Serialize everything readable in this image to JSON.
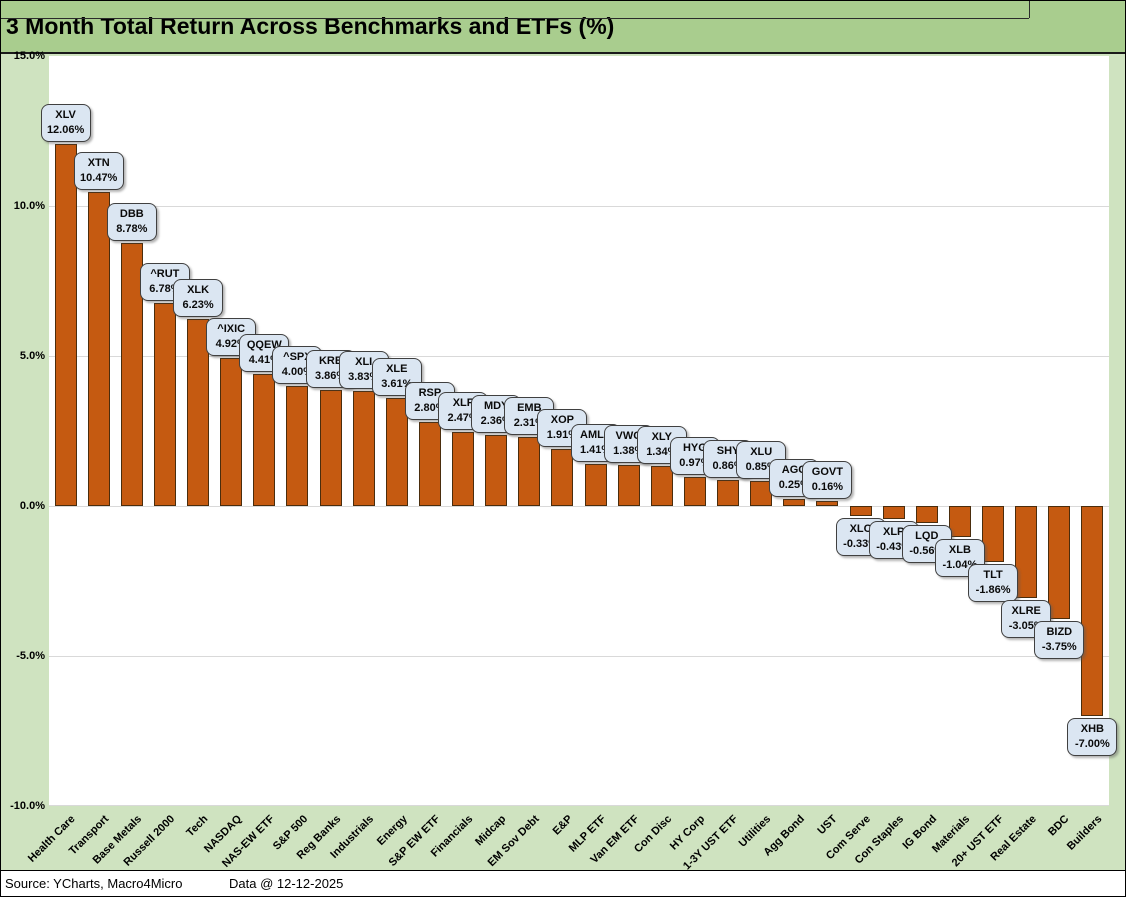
{
  "title": "3 Month Total Return Across Benchmarks and ETFs (%)",
  "footer": {
    "source": "Source: YCharts, Macro4Micro",
    "data_date": "Data @ 12-12-2025"
  },
  "chart_data": {
    "type": "bar",
    "title": "3 Month Total Return Across Benchmarks and ETFs (%)",
    "xlabel": "",
    "ylabel": "",
    "ylim": [
      -10,
      15
    ],
    "grid": true,
    "legend": "none",
    "grid_values": [
      10,
      5,
      0,
      -5
    ],
    "yticks": [
      {
        "value": 15,
        "label": "15.0%"
      },
      {
        "value": 10,
        "label": "10.0%"
      },
      {
        "value": 5,
        "label": "5.0%"
      },
      {
        "value": 0,
        "label": "0.0%"
      },
      {
        "value": -5,
        "label": "-5.0%"
      },
      {
        "value": -10,
        "label": "-10.0%"
      }
    ],
    "colors": {
      "background": "#cfe3c0",
      "title_band_bg": "#a9cd8e",
      "plot_bg": "#ffffff",
      "bar_fill": "#c55a11",
      "bar_border": "#4a2d0d",
      "label_box_bg": "#dbe6f2",
      "label_box_border": "#404040",
      "gridline": "#d9d9d9"
    },
    "points": [
      {
        "category": "Health Care",
        "ticker": "XLV",
        "value": 12.06,
        "label": "12.06%"
      },
      {
        "category": "Transport",
        "ticker": "XTN",
        "value": 10.47,
        "label": "10.47%"
      },
      {
        "category": "Base Metals",
        "ticker": "DBB",
        "value": 8.78,
        "label": "8.78%"
      },
      {
        "category": "Russell 2000",
        "ticker": "^RUT",
        "value": 6.78,
        "label": "6.78%"
      },
      {
        "category": "Tech",
        "ticker": "XLK",
        "value": 6.23,
        "label": "6.23%"
      },
      {
        "category": "NASDAQ",
        "ticker": "^IXIC",
        "value": 4.92,
        "label": "4.92%"
      },
      {
        "category": "NAS-EW ETF",
        "ticker": "QQEW",
        "value": 4.41,
        "label": "4.41%"
      },
      {
        "category": "S&P 500",
        "ticker": "^SPX",
        "value": 4.0,
        "label": "4.00%"
      },
      {
        "category": "Reg Banks",
        "ticker": "KRE",
        "value": 3.86,
        "label": "3.86%"
      },
      {
        "category": "Industrials",
        "ticker": "XLI",
        "value": 3.83,
        "label": "3.83%"
      },
      {
        "category": "Energy",
        "ticker": "XLE",
        "value": 3.61,
        "label": "3.61%"
      },
      {
        "category": "S&P EW ETF",
        "ticker": "RSP",
        "value": 2.8,
        "label": "2.80%"
      },
      {
        "category": "Financials",
        "ticker": "XLF",
        "value": 2.47,
        "label": "2.47%"
      },
      {
        "category": "Midcap",
        "ticker": "MDY",
        "value": 2.36,
        "label": "2.36%"
      },
      {
        "category": "EM Sov Debt",
        "ticker": "EMB",
        "value": 2.31,
        "label": "2.31%"
      },
      {
        "category": "E&P",
        "ticker": "XOP",
        "value": 1.91,
        "label": "1.91%"
      },
      {
        "category": "MLP ETF",
        "ticker": "AMLP",
        "value": 1.41,
        "label": "1.41%"
      },
      {
        "category": "Van EM ETF",
        "ticker": "VWO",
        "value": 1.38,
        "label": "1.38%"
      },
      {
        "category": "Con Disc",
        "ticker": "XLY",
        "value": 1.34,
        "label": "1.34%"
      },
      {
        "category": "HY Corp",
        "ticker": "HYG",
        "value": 0.97,
        "label": "0.97%"
      },
      {
        "category": "1-3Y UST ETF",
        "ticker": "SHY",
        "value": 0.86,
        "label": "0.86%"
      },
      {
        "category": "Utilities",
        "ticker": "XLU",
        "value": 0.85,
        "label": "0.85%"
      },
      {
        "category": "Agg Bond",
        "ticker": "AGG",
        "value": 0.25,
        "label": "0.25%"
      },
      {
        "category": "UST",
        "ticker": "GOVT",
        "value": 0.16,
        "label": "0.16%"
      },
      {
        "category": "Com Serve",
        "ticker": "XLC",
        "value": -0.33,
        "label": "-0.33%"
      },
      {
        "category": "Con Staples",
        "ticker": "XLP",
        "value": -0.43,
        "label": "-0.43%"
      },
      {
        "category": "IG Bond",
        "ticker": "LQD",
        "value": -0.56,
        "label": "-0.56%"
      },
      {
        "category": "Materials",
        "ticker": "XLB",
        "value": -1.04,
        "label": "-1.04%"
      },
      {
        "category": "20+ UST ETF",
        "ticker": "TLT",
        "value": -1.86,
        "label": "-1.86%"
      },
      {
        "category": "Real Estate",
        "ticker": "XLRE",
        "value": -3.05,
        "label": "-3.05%"
      },
      {
        "category": "BDC",
        "ticker": "BIZD",
        "value": -3.75,
        "label": "-3.75%"
      },
      {
        "category": "Builders",
        "ticker": "XHB",
        "value": -7.0,
        "label": "-7.00%"
      }
    ]
  }
}
